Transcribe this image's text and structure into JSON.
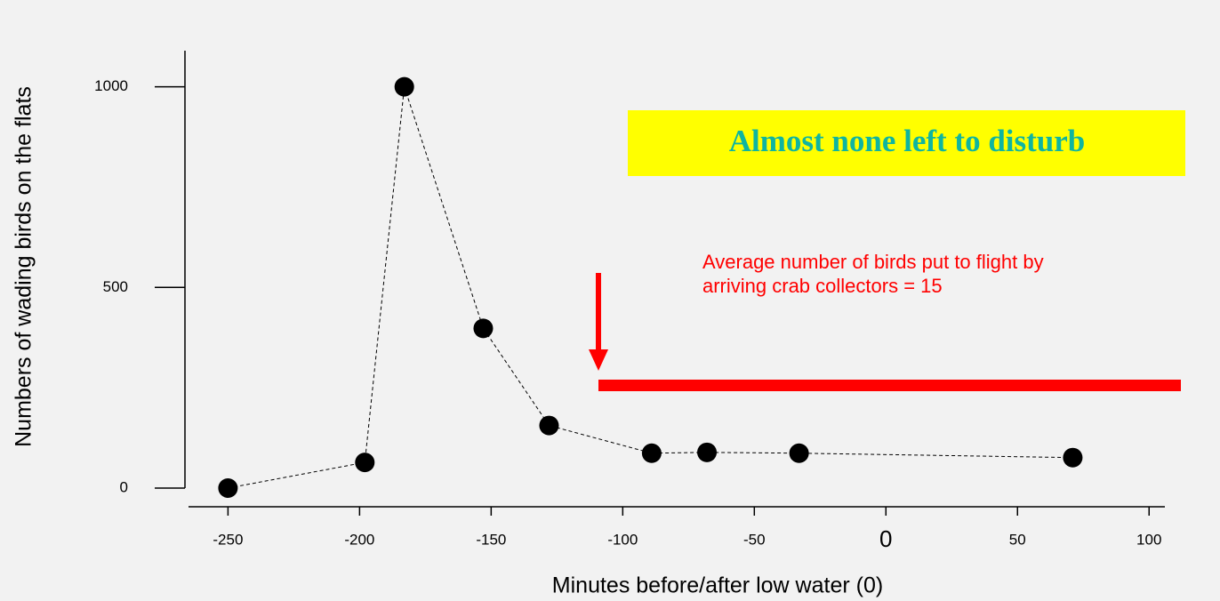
{
  "chart_data": {
    "type": "line",
    "y_label": "Numbers of wading birds on the flats",
    "x_label": "Minutes before/after low water (0)",
    "annotations": [
      "Almost none left to disturb",
      "Average number of birds put to flight by",
      "arriving crab collectors = 15"
    ],
    "x": [
      -250,
      -198,
      -183,
      -153,
      -128,
      -89,
      -68,
      -33,
      71
    ],
    "series": [
      {
        "name": "Wading birds",
        "color": "#000000",
        "values": [
          0,
          64,
          1000,
          398,
          156,
          87,
          89,
          87,
          76
        ]
      }
    ],
    "xlim": [
      -265,
      106
    ],
    "xticks": [
      -250,
      -200,
      -150,
      -100,
      -50,
      0,
      50,
      100
    ],
    "ylim": [
      0,
      1090
    ],
    "yticks": [
      0,
      500,
      1000
    ]
  }
}
